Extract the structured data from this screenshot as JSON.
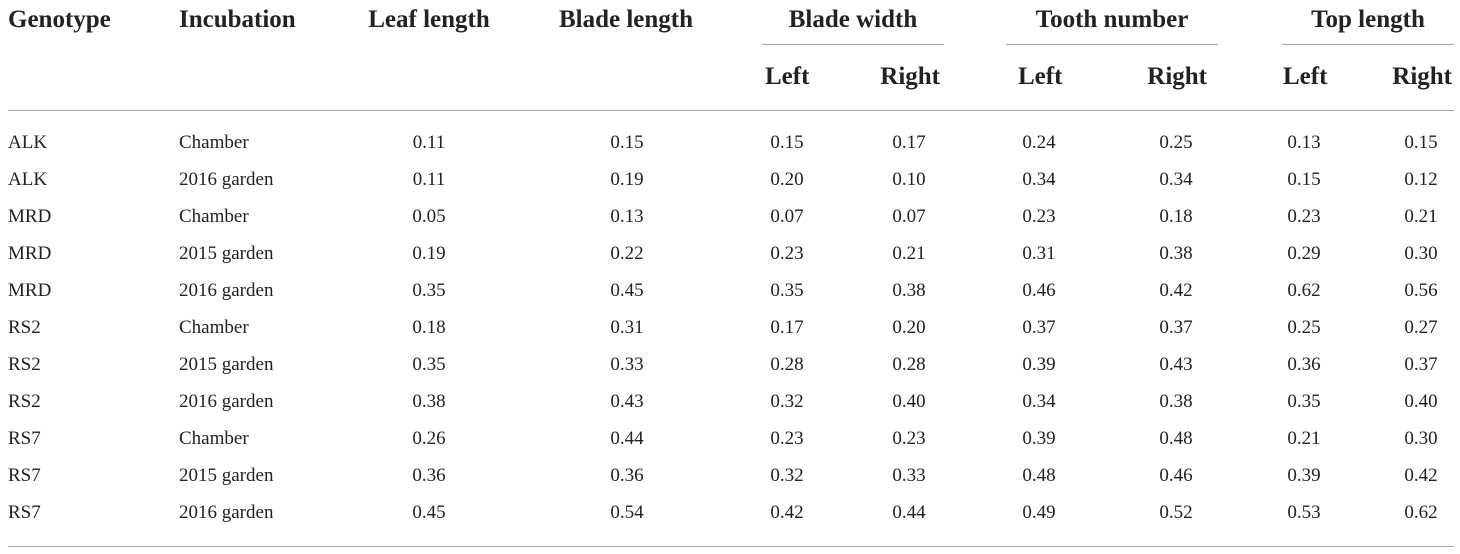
{
  "table": {
    "headers": {
      "genotype": "Genotype",
      "incubation": "Incubation",
      "leaf_length": "Leaf length",
      "blade_length": "Blade length",
      "blade_width": "Blade width",
      "tooth_number": "Tooth number",
      "top_length": "Top length",
      "left": "Left",
      "right": "Right"
    },
    "rows": [
      {
        "genotype": "ALK",
        "incubation": "Chamber",
        "values": [
          "0.11",
          "0.15",
          "0.15",
          "0.17",
          "0.24",
          "0.25",
          "0.13",
          "0.15"
        ]
      },
      {
        "genotype": "ALK",
        "incubation": "2016 garden",
        "values": [
          "0.11",
          "0.19",
          "0.20",
          "0.10",
          "0.34",
          "0.34",
          "0.15",
          "0.12"
        ]
      },
      {
        "genotype": "MRD",
        "incubation": "Chamber",
        "values": [
          "0.05",
          "0.13",
          "0.07",
          "0.07",
          "0.23",
          "0.18",
          "0.23",
          "0.21"
        ]
      },
      {
        "genotype": "MRD",
        "incubation": "2015 garden",
        "values": [
          "0.19",
          "0.22",
          "0.23",
          "0.21",
          "0.31",
          "0.38",
          "0.29",
          "0.30"
        ]
      },
      {
        "genotype": "MRD",
        "incubation": "2016 garden",
        "values": [
          "0.35",
          "0.45",
          "0.35",
          "0.38",
          "0.46",
          "0.42",
          "0.62",
          "0.56"
        ]
      },
      {
        "genotype": "RS2",
        "incubation": "Chamber",
        "values": [
          "0.18",
          "0.31",
          "0.17",
          "0.20",
          "0.37",
          "0.37",
          "0.25",
          "0.27"
        ]
      },
      {
        "genotype": "RS2",
        "incubation": "2015 garden",
        "values": [
          "0.35",
          "0.33",
          "0.28",
          "0.28",
          "0.39",
          "0.43",
          "0.36",
          "0.37"
        ]
      },
      {
        "genotype": "RS2",
        "incubation": "2016 garden",
        "values": [
          "0.38",
          "0.43",
          "0.32",
          "0.40",
          "0.34",
          "0.38",
          "0.35",
          "0.40"
        ]
      },
      {
        "genotype": "RS7",
        "incubation": "Chamber",
        "values": [
          "0.26",
          "0.44",
          "0.23",
          "0.23",
          "0.39",
          "0.48",
          "0.21",
          "0.30"
        ]
      },
      {
        "genotype": "RS7",
        "incubation": "2015 garden",
        "values": [
          "0.36",
          "0.36",
          "0.32",
          "0.33",
          "0.48",
          "0.46",
          "0.39",
          "0.42"
        ]
      },
      {
        "genotype": "RS7",
        "incubation": "2016 garden",
        "values": [
          "0.45",
          "0.54",
          "0.42",
          "0.44",
          "0.49",
          "0.52",
          "0.53",
          "0.62"
        ]
      }
    ]
  }
}
